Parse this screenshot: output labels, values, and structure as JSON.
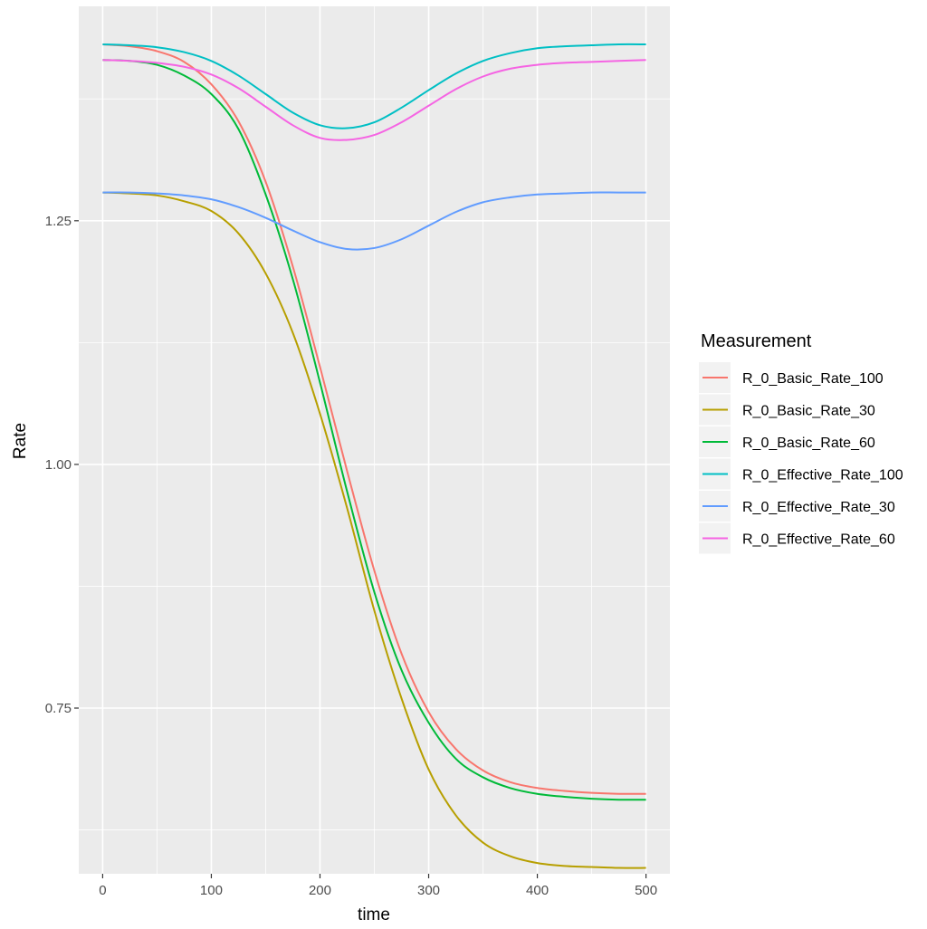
{
  "chart_data": {
    "type": "line",
    "xlabel": "time",
    "ylabel": "Rate",
    "xlim": [
      -22,
      522
    ],
    "ylim": [
      0.58,
      1.47
    ],
    "x_ticks": [
      0,
      100,
      200,
      300,
      400,
      500
    ],
    "y_ticks": [
      0.75,
      1.0,
      1.25
    ],
    "x_tick_labels": [
      "0",
      "100",
      "200",
      "300",
      "400",
      "500"
    ],
    "y_tick_labels": [
      "0.75",
      "1.00",
      "1.25"
    ],
    "grid": true,
    "legend": {
      "title": "Measurement",
      "position": "right"
    },
    "x": [
      0,
      25,
      50,
      75,
      100,
      125,
      150,
      175,
      200,
      225,
      250,
      275,
      300,
      325,
      350,
      375,
      400,
      425,
      450,
      475,
      500
    ],
    "series": [
      {
        "name": "R_0_Basic_Rate_100",
        "color": "#F8766D",
        "values": [
          1.431,
          1.429,
          1.424,
          1.413,
          1.39,
          1.352,
          1.29,
          1.203,
          1.1,
          0.993,
          0.891,
          0.806,
          0.746,
          0.708,
          0.686,
          0.674,
          0.668,
          0.665,
          0.663,
          0.662,
          0.662
        ]
      },
      {
        "name": "R_0_Basic_Rate_30",
        "color": "#B79F00",
        "values": [
          1.279,
          1.278,
          1.276,
          1.27,
          1.26,
          1.237,
          1.196,
          1.135,
          1.052,
          0.955,
          0.85,
          0.76,
          0.687,
          0.64,
          0.612,
          0.598,
          0.591,
          0.588,
          0.587,
          0.586,
          0.586
        ]
      },
      {
        "name": "R_0_Basic_Rate_60",
        "color": "#00BA38",
        "values": [
          1.415,
          1.414,
          1.41,
          1.399,
          1.38,
          1.344,
          1.277,
          1.19,
          1.084,
          0.972,
          0.869,
          0.789,
          0.735,
          0.698,
          0.679,
          0.668,
          0.662,
          0.659,
          0.657,
          0.656,
          0.656
        ]
      },
      {
        "name": "R_0_Effective_Rate_100",
        "color": "#00BFC4",
        "values": [
          1.431,
          1.43,
          1.428,
          1.423,
          1.414,
          1.399,
          1.38,
          1.361,
          1.348,
          1.345,
          1.351,
          1.366,
          1.384,
          1.401,
          1.414,
          1.422,
          1.427,
          1.429,
          1.43,
          1.431,
          1.431
        ]
      },
      {
        "name": "R_0_Effective_Rate_30",
        "color": "#619CFF",
        "values": [
          1.279,
          1.279,
          1.278,
          1.276,
          1.272,
          1.264,
          1.253,
          1.24,
          1.228,
          1.221,
          1.222,
          1.231,
          1.245,
          1.259,
          1.269,
          1.274,
          1.277,
          1.278,
          1.279,
          1.279,
          1.279
        ]
      },
      {
        "name": "R_0_Effective_Rate_60",
        "color": "#F564E3",
        "values": [
          1.415,
          1.414,
          1.412,
          1.408,
          1.4,
          1.386,
          1.367,
          1.348,
          1.335,
          1.333,
          1.338,
          1.351,
          1.368,
          1.385,
          1.398,
          1.406,
          1.41,
          1.412,
          1.413,
          1.414,
          1.415
        ]
      }
    ]
  }
}
